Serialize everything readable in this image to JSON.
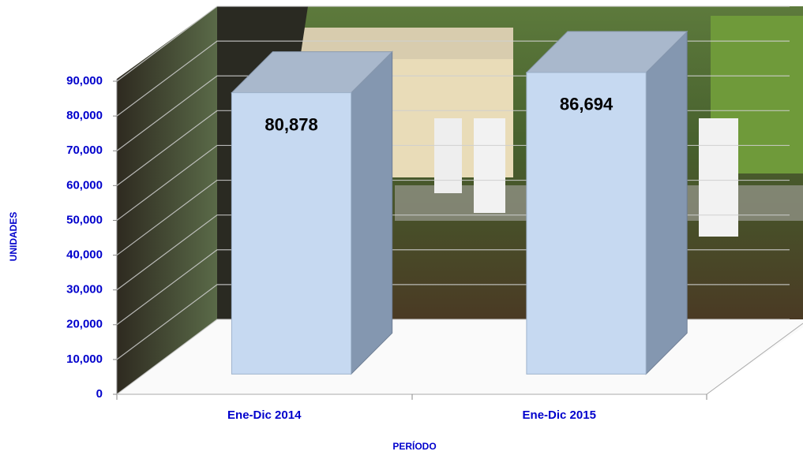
{
  "chart_data": {
    "type": "bar3d",
    "categories": [
      "Ene-Dic 2014",
      "Ene-Dic 2015"
    ],
    "values": [
      80878,
      86694
    ],
    "value_labels": [
      "80,878",
      "86,694"
    ],
    "color": "#c6d9f1",
    "ylim": [
      0,
      90000
    ],
    "yticks": [
      0,
      {
        "value": 10000,
        "label": "10,000"
      },
      {
        "value": 20000,
        "label": "20,000"
      },
      {
        "value": 30000,
        "label": "30,000"
      },
      {
        "value": 40000,
        "label": "40,000"
      },
      {
        "value": 50000,
        "label": "50,000"
      },
      {
        "value": 60000,
        "label": "60,000"
      },
      {
        "value": 70000,
        "label": "70,000"
      },
      {
        "value": 80000,
        "label": "80,000"
      },
      {
        "value": 90000,
        "label": "90,000"
      }
    ],
    "ylabel": "UNIDADES",
    "xlabel": "PERÍODO",
    "grid": true
  }
}
